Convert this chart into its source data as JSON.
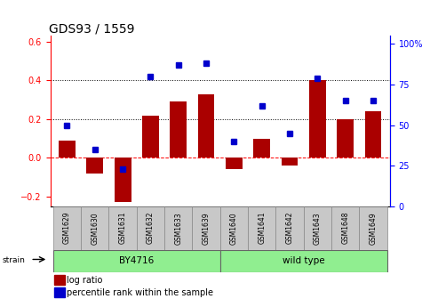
{
  "title": "GDS93 / 1559",
  "samples": [
    "GSM1629",
    "GSM1630",
    "GSM1631",
    "GSM1632",
    "GSM1633",
    "GSM1639",
    "GSM1640",
    "GSM1641",
    "GSM1642",
    "GSM1643",
    "GSM1648",
    "GSM1649"
  ],
  "log_ratio": [
    0.09,
    -0.08,
    -0.23,
    0.22,
    0.29,
    0.33,
    -0.06,
    0.1,
    -0.04,
    0.4,
    0.2,
    0.24
  ],
  "percentile": [
    50,
    35,
    23,
    80,
    87,
    88,
    40,
    62,
    45,
    79,
    65,
    65
  ],
  "by4716_count": 6,
  "bar_color": "#AA0000",
  "dot_color": "#0000CC",
  "left_ylim": [
    -0.25,
    0.63
  ],
  "right_ylim": [
    0,
    105
  ],
  "left_yticks": [
    -0.2,
    0.0,
    0.2,
    0.4,
    0.6
  ],
  "right_yticks": [
    0,
    25,
    50,
    75,
    100
  ],
  "hline_y": [
    0.2,
    0.4
  ],
  "zero_line_y": 0.0,
  "strain_label": "strain",
  "by_label": "BY4716",
  "wt_label": "wild type",
  "green_color": "#90EE90",
  "sample_box_color": "#C8C8C8",
  "legend_items": [
    {
      "label": "log ratio",
      "color": "#AA0000"
    },
    {
      "label": "percentile rank within the sample",
      "color": "#0000CC"
    }
  ]
}
